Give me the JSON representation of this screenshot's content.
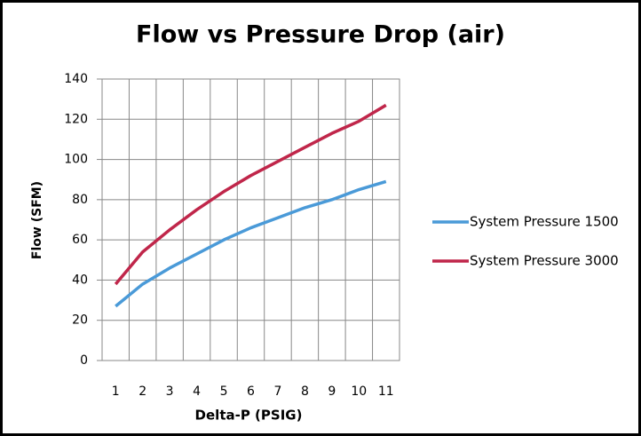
{
  "chart_data": {
    "type": "line",
    "title": "Flow vs Pressure Drop (air)",
    "x_label": "Delta-P (PSIG)",
    "y_label": "Flow (SFM)",
    "categories": [
      "1",
      "2",
      "3",
      "4",
      "5",
      "6",
      "7",
      "8",
      "9",
      "10",
      "11"
    ],
    "series": [
      {
        "name": "System Pressure 1500",
        "color": "#4a9ad8",
        "values": [
          27,
          38,
          46,
          53,
          60,
          66,
          71,
          76,
          80,
          85,
          89
        ]
      },
      {
        "name": "System Pressure 3000",
        "color": "#c0264a",
        "values": [
          38,
          54,
          65,
          75,
          84,
          92,
          99,
          106,
          113,
          119,
          127
        ]
      }
    ],
    "ylim": [
      0,
      140
    ],
    "yticks": [
      0,
      20,
      40,
      60,
      80,
      100,
      120,
      140
    ],
    "grid": true,
    "legend": "right"
  }
}
